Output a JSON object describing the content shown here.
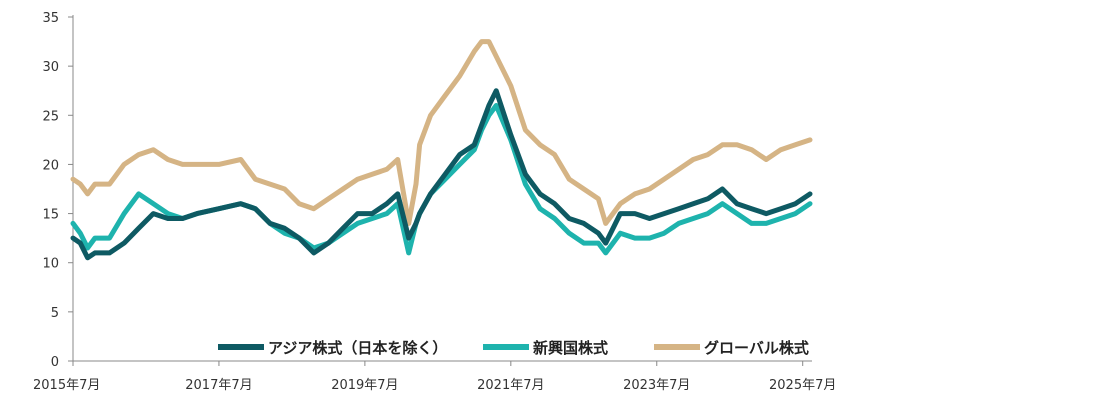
{
  "chart_data": {
    "type": "line",
    "title": "",
    "xlabel": "",
    "ylabel": "",
    "ylim": [
      0,
      35
    ],
    "yticks": [
      0,
      5,
      10,
      15,
      20,
      25,
      30,
      35
    ],
    "xlim": [
      2015.5,
      2025.6
    ],
    "xticks": [
      {
        "value": 2015.5,
        "label": "2015年7月"
      },
      {
        "value": 2017.5,
        "label": "2017年7月"
      },
      {
        "value": 2019.5,
        "label": "2019年7月"
      },
      {
        "value": 2021.5,
        "label": "2021年7月"
      },
      {
        "value": 2023.5,
        "label": "2023年7月"
      },
      {
        "value": 2025.5,
        "label": "2025年7月"
      }
    ],
    "grid": false,
    "legend_position": "bottom",
    "series": [
      {
        "name": "アジア株式（日本を除く）",
        "color": "#0e5a63",
        "x": [
          2015.5,
          2015.6,
          2015.7,
          2015.8,
          2016.0,
          2016.2,
          2016.4,
          2016.6,
          2016.8,
          2017.0,
          2017.2,
          2017.5,
          2017.8,
          2018.0,
          2018.2,
          2018.4,
          2018.6,
          2018.8,
          2019.0,
          2019.2,
          2019.4,
          2019.6,
          2019.8,
          2019.95,
          2020.1,
          2020.2,
          2020.25,
          2020.4,
          2020.6,
          2020.8,
          2021.0,
          2021.1,
          2021.2,
          2021.3,
          2021.5,
          2021.7,
          2021.9,
          2022.1,
          2022.3,
          2022.5,
          2022.7,
          2022.8,
          2023.0,
          2023.2,
          2023.4,
          2023.6,
          2023.8,
          2024.0,
          2024.2,
          2024.4,
          2024.6,
          2024.8,
          2025.0,
          2025.2,
          2025.4,
          2025.6
        ],
        "values": [
          12.5,
          12.0,
          10.5,
          11.0,
          11.0,
          12.0,
          13.5,
          15.0,
          14.5,
          14.5,
          15.0,
          15.5,
          16.0,
          15.5,
          14.0,
          13.5,
          12.5,
          11.0,
          12.0,
          13.5,
          15.0,
          15.0,
          16.0,
          17.0,
          12.5,
          14.0,
          15.0,
          17.0,
          19.0,
          21.0,
          22.0,
          24.0,
          26.0,
          27.5,
          23.0,
          19.0,
          17.0,
          16.0,
          14.5,
          14.0,
          13.0,
          12.0,
          15.0,
          15.0,
          14.5,
          15.0,
          15.5,
          16.0,
          16.5,
          17.5,
          16.0,
          15.5,
          15.0,
          15.5,
          16.0,
          17.0
        ]
      },
      {
        "name": "新興国株式",
        "color": "#1eb3ad",
        "x": [
          2015.5,
          2015.6,
          2015.7,
          2015.8,
          2016.0,
          2016.2,
          2016.4,
          2016.6,
          2016.8,
          2017.0,
          2017.2,
          2017.5,
          2017.8,
          2018.0,
          2018.2,
          2018.4,
          2018.6,
          2018.8,
          2019.0,
          2019.2,
          2019.4,
          2019.6,
          2019.8,
          2019.95,
          2020.1,
          2020.2,
          2020.25,
          2020.4,
          2020.6,
          2020.8,
          2021.0,
          2021.1,
          2021.2,
          2021.3,
          2021.5,
          2021.7,
          2021.9,
          2022.1,
          2022.3,
          2022.5,
          2022.7,
          2022.8,
          2023.0,
          2023.2,
          2023.4,
          2023.6,
          2023.8,
          2024.0,
          2024.2,
          2024.4,
          2024.6,
          2024.8,
          2025.0,
          2025.2,
          2025.4,
          2025.6
        ],
        "values": [
          14.0,
          13.0,
          11.5,
          12.5,
          12.5,
          15.0,
          17.0,
          16.0,
          15.0,
          14.5,
          15.0,
          15.5,
          16.0,
          15.5,
          14.0,
          13.0,
          12.5,
          11.5,
          12.0,
          13.0,
          14.0,
          14.5,
          15.0,
          16.0,
          11.0,
          14.0,
          15.0,
          17.0,
          18.5,
          20.0,
          21.5,
          23.5,
          25.0,
          26.0,
          22.5,
          18.0,
          15.5,
          14.5,
          13.0,
          12.0,
          12.0,
          11.0,
          13.0,
          12.5,
          12.5,
          13.0,
          14.0,
          14.5,
          15.0,
          16.0,
          15.0,
          14.0,
          14.0,
          14.5,
          15.0,
          16.0
        ]
      },
      {
        "name": "グローバル株式",
        "color": "#d5b485",
        "x": [
          2015.5,
          2015.6,
          2015.7,
          2015.8,
          2016.0,
          2016.2,
          2016.4,
          2016.6,
          2016.8,
          2017.0,
          2017.2,
          2017.5,
          2017.8,
          2018.0,
          2018.2,
          2018.4,
          2018.6,
          2018.8,
          2019.0,
          2019.2,
          2019.4,
          2019.6,
          2019.8,
          2019.95,
          2020.1,
          2020.2,
          2020.25,
          2020.4,
          2020.6,
          2020.8,
          2021.0,
          2021.1,
          2021.2,
          2021.3,
          2021.5,
          2021.7,
          2021.9,
          2022.1,
          2022.3,
          2022.5,
          2022.7,
          2022.8,
          2023.0,
          2023.2,
          2023.4,
          2023.6,
          2023.8,
          2024.0,
          2024.2,
          2024.4,
          2024.6,
          2024.8,
          2025.0,
          2025.2,
          2025.4,
          2025.6
        ],
        "values": [
          18.5,
          18.0,
          17.0,
          18.0,
          18.0,
          20.0,
          21.0,
          21.5,
          20.5,
          20.0,
          20.0,
          20.0,
          20.5,
          18.5,
          18.0,
          17.5,
          16.0,
          15.5,
          16.5,
          17.5,
          18.5,
          19.0,
          19.5,
          20.5,
          14.0,
          18.0,
          22.0,
          25.0,
          27.0,
          29.0,
          31.5,
          32.5,
          32.5,
          31.0,
          28.0,
          23.5,
          22.0,
          21.0,
          18.5,
          17.5,
          16.5,
          14.0,
          16.0,
          17.0,
          17.5,
          18.5,
          19.5,
          20.5,
          21.0,
          22.0,
          22.0,
          21.5,
          20.5,
          21.5,
          22.0,
          22.5
        ]
      }
    ]
  }
}
